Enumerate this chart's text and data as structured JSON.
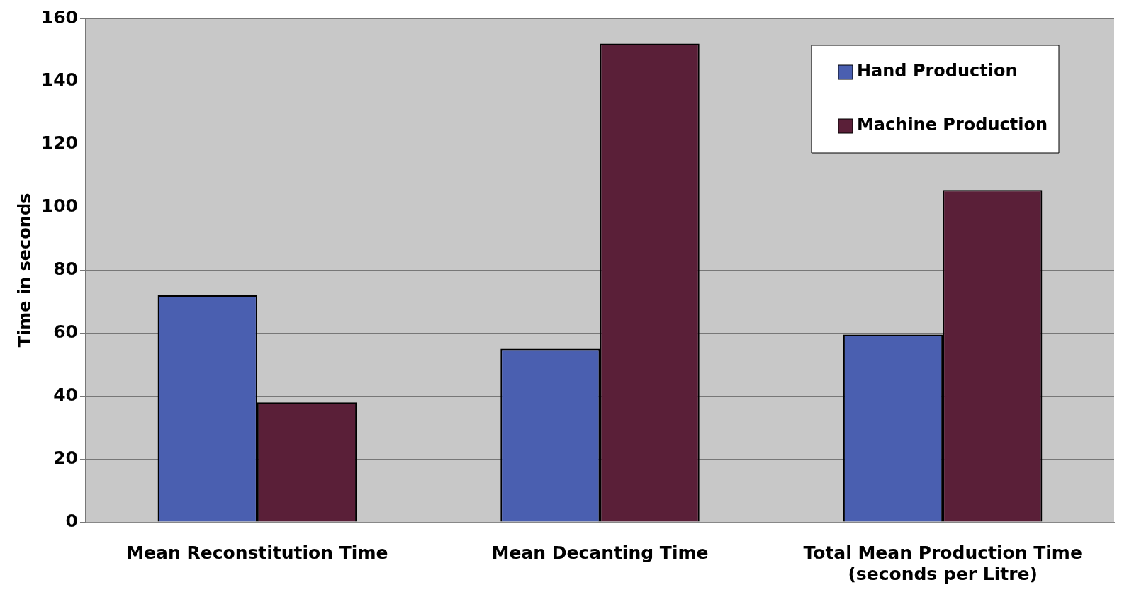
{
  "chart_data": {
    "type": "bar",
    "ylabel": "Time in seconds",
    "categories": [
      "Mean Reconstitution Time",
      "Mean Decanting Time",
      "Total Mean Production Time (seconds per Litre)"
    ],
    "series": [
      {
        "name": "Hand Production",
        "color": "#4a5fb0",
        "values": [
          72,
          55,
          59.5
        ]
      },
      {
        "name": "Machine Production",
        "color": "#5a1f38",
        "values": [
          38,
          152,
          105.5
        ]
      }
    ],
    "ylim": [
      0,
      160
    ],
    "yticks": [
      0,
      20,
      40,
      60,
      80,
      100,
      120,
      140,
      160
    ],
    "grid": "y",
    "legend": "top right"
  }
}
